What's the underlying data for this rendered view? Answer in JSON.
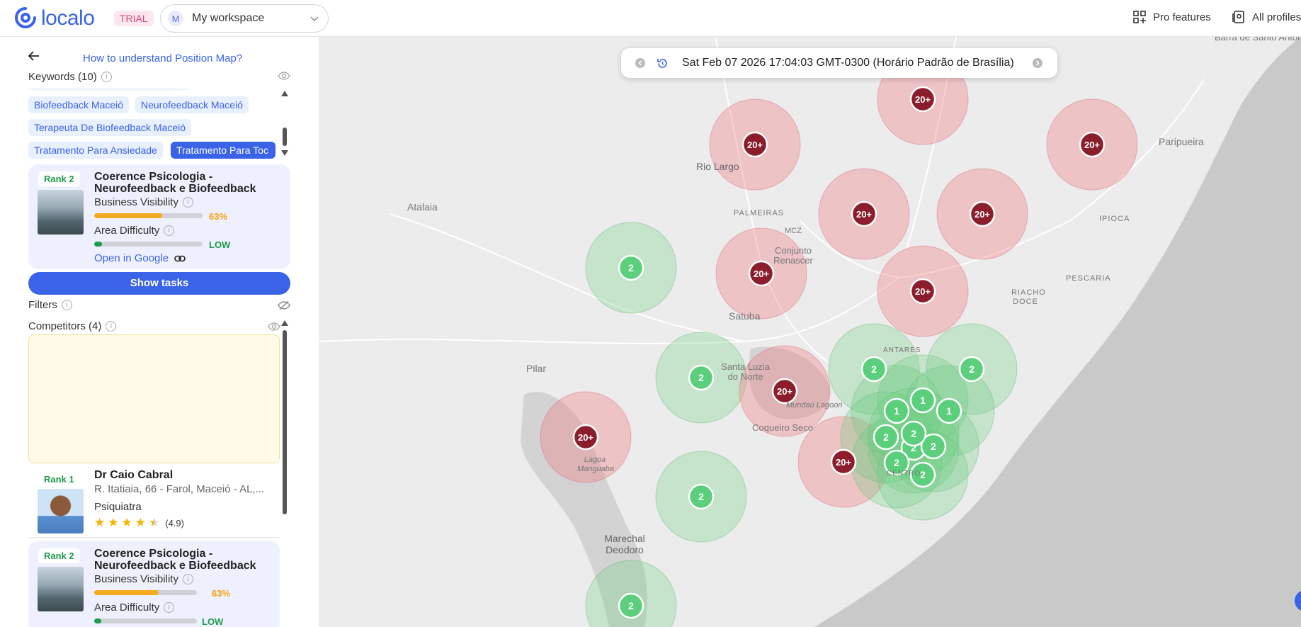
{
  "topbar": {
    "logo_text": "localo",
    "trial_badge": "TRIAL",
    "workspace_initial": "M",
    "workspace_label": "My workspace",
    "pro_features": "Pro features",
    "all_profiles": "All profiles"
  },
  "sidebar": {
    "howto_link": "How to understand Position Map?",
    "keywords_title": "Keywords (10)",
    "keywords": [
      "Biofeedback Maceió",
      "Neurofeedback Maceió",
      "Terapeuta De Biofeedback Maceió",
      "Tratamento Para Ansiedade",
      "Tratamento Para Toc"
    ],
    "selected_keyword": "Tratamento Para Toc",
    "business_card": {
      "rank": "Rank 2",
      "name": "Coerence Psicologia - Neurofeedback e Biofeedback",
      "visibility_label": "Business Visibility",
      "visibility_value": "63%",
      "visibility_fraction": 0.63,
      "difficulty_label": "Area Difficulty",
      "difficulty_value": "LOW",
      "difficulty_fraction": 0.07,
      "open_google": "Open in Google"
    },
    "show_tasks": "Show tasks",
    "filters_title": "Filters",
    "competitors_title": "Competitors (4)",
    "competitors": [
      {
        "rank": "Rank 1",
        "name": "Dr Caio Cabral",
        "address": "R. Itatiaia, 66 - Farol, Maceió - AL,...",
        "category": "Psiquiatra",
        "rating": "(4.9)",
        "stars": 4.5
      },
      {
        "rank": "Rank 2",
        "name": "Coerence Psicologia - Neurofeedback e Biofeedback",
        "visibility_label": "Business Visibility",
        "visibility_value": "63%",
        "visibility_fraction": 0.63,
        "difficulty_label": "Area Difficulty",
        "difficulty_value": "LOW",
        "difficulty_fraction": 0.07
      }
    ]
  },
  "map": {
    "timestamp": "Sat Feb 07 2026 17:04:03 GMT-0300 (Horário Padrão de Brasília)",
    "place_labels": [
      "Barra de Santo Antônio",
      "Rio Largo",
      "PALMEIRAS",
      "MCZ",
      "Conjunto Renascer",
      "Satuba",
      "Atalaia",
      "Paripueira",
      "IPIOCA",
      "PESCARIA",
      "RIACHO DOCE",
      "Pilar",
      "Santa Luzia do Norte",
      "Mundaú Lagoon",
      "Coqueiro Seco",
      "Lagoa Manguaba",
      "Marechal Deodoro",
      "ANTARES",
      "CENTRO"
    ],
    "pin_labels": [
      "20+",
      "2",
      "1"
    ],
    "colors": {
      "good": "#5ccf7c",
      "bad": "#8c1d2c",
      "accent": "#3a63e8"
    }
  }
}
